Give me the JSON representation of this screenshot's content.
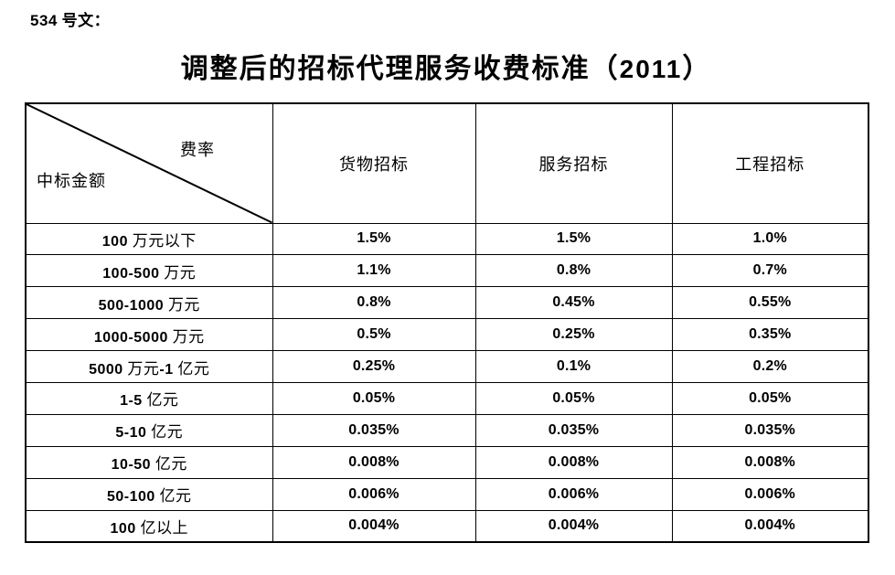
{
  "doc": {
    "ref_label": "534 号文：",
    "title": "调整后的招标代理服务收费标准（2011）"
  },
  "table": {
    "corner": {
      "top_right": "费率",
      "bottom_left": "中标金额"
    },
    "columns": [
      "货物招标",
      "服务招标",
      "工程招标"
    ],
    "rows": [
      {
        "label": "100 万元以下",
        "values": [
          "1.5%",
          "1.5%",
          "1.0%"
        ]
      },
      {
        "label": "100-500 万元",
        "values": [
          "1.1%",
          "0.8%",
          "0.7%"
        ]
      },
      {
        "label": "500-1000 万元",
        "values": [
          "0.8%",
          "0.45%",
          "0.55%"
        ]
      },
      {
        "label": "1000-5000 万元",
        "values": [
          "0.5%",
          "0.25%",
          "0.35%"
        ]
      },
      {
        "label": "5000 万元-1 亿元",
        "values": [
          "0.25%",
          "0.1%",
          "0.2%"
        ]
      },
      {
        "label": "1-5 亿元",
        "values": [
          "0.05%",
          "0.05%",
          "0.05%"
        ]
      },
      {
        "label": "5-10 亿元",
        "values": [
          "0.035%",
          "0.035%",
          "0.035%"
        ]
      },
      {
        "label": "10-50 亿元",
        "values": [
          "0.008%",
          "0.008%",
          "0.008%"
        ]
      },
      {
        "label": "50-100 亿元",
        "values": [
          "0.006%",
          "0.006%",
          "0.006%"
        ]
      },
      {
        "label": "100 亿以上",
        "values": [
          "0.004%",
          "0.004%",
          "0.004%"
        ]
      }
    ]
  },
  "colors": {
    "text": "#000000",
    "border": "#000000",
    "background": "#ffffff"
  }
}
